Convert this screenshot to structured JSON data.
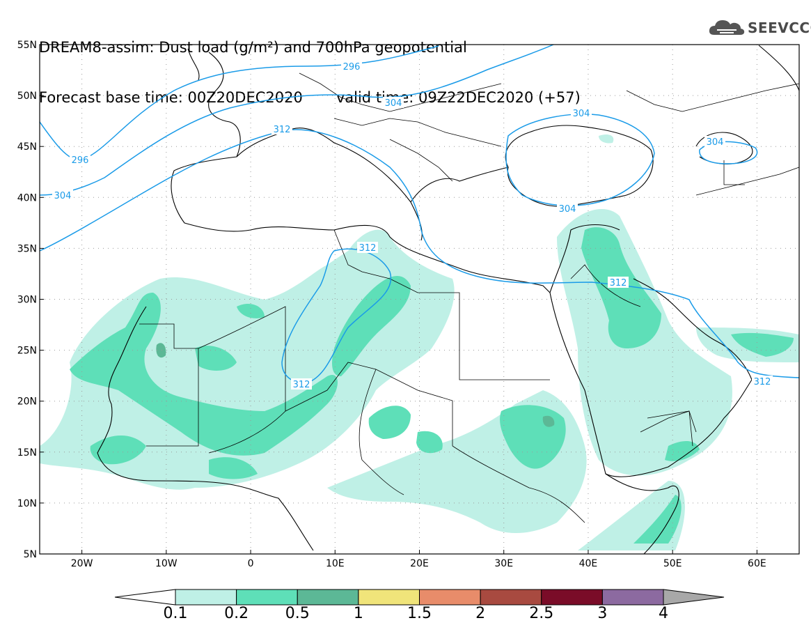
{
  "title": {
    "line1": "DREAM8-assim: Dust load (g/m²) and 700hPa geopotential",
    "base_label": "Forecast base time: 00Z20DEC2020",
    "valid_label": "valid time: 09Z22DEC2020 (+57)"
  },
  "logo": {
    "text": "SEEVCCC",
    "icon": "cloud-icon"
  },
  "map": {
    "lat_labels": [
      "55N",
      "50N",
      "45N",
      "40N",
      "35N",
      "30N",
      "25N",
      "20N",
      "15N",
      "10N",
      "5N"
    ],
    "lat_values": [
      55,
      50,
      45,
      40,
      35,
      30,
      25,
      20,
      15,
      10,
      5
    ],
    "lon_labels": [
      "20W",
      "10W",
      "0",
      "10E",
      "20E",
      "30E",
      "40E",
      "50E",
      "60E"
    ],
    "lon_values": [
      -20,
      -10,
      0,
      10,
      20,
      30,
      40,
      50,
      60
    ],
    "contour_labels": [
      "296",
      "296",
      "304",
      "304",
      "304",
      "304",
      "304",
      "312",
      "312",
      "312",
      "312",
      "312"
    ],
    "contour_color": "#1a9be8"
  },
  "colorbar": {
    "labels": [
      "0.1",
      "0.2",
      "0.5",
      "1",
      "1.5",
      "2",
      "2.5",
      "3",
      "4"
    ],
    "colors": [
      "#ffffff",
      "#bff0e6",
      "#5edfb8",
      "#5cb896",
      "#f0e47a",
      "#e88c6a",
      "#a84a40",
      "#7a0c28",
      "#8c6aa0",
      "#a8a8a8"
    ]
  }
}
